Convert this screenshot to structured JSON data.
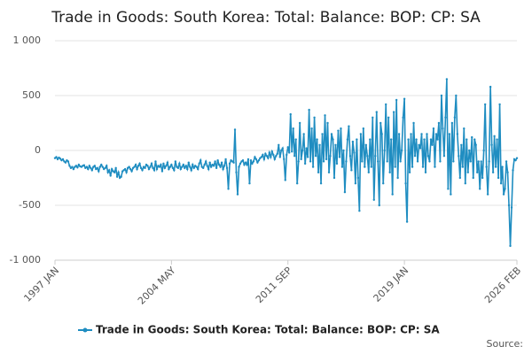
{
  "chart_data": {
    "type": "line",
    "title": "Trade in Goods: South Korea: Total: Balance: BOP: CP: SA",
    "source": "Source:",
    "categories": [
      "1997 JAN",
      null,
      null,
      null,
      null,
      null,
      null,
      null,
      null,
      null,
      null,
      null,
      null,
      null,
      null,
      null,
      null,
      null,
      null,
      null,
      null,
      null,
      null,
      null,
      null,
      null,
      null,
      null,
      null,
      null,
      null,
      null,
      null,
      null,
      null,
      null,
      null,
      null,
      null,
      null,
      null,
      null,
      null,
      null,
      null,
      null,
      null,
      null,
      null,
      null,
      null,
      null,
      null,
      null,
      null,
      null,
      null,
      null,
      null,
      null,
      null,
      null,
      null,
      null,
      null,
      null,
      null,
      null,
      null,
      null,
      null,
      null,
      null,
      null,
      null,
      null,
      null,
      null,
      null,
      null,
      null,
      null,
      null,
      null,
      null,
      null,
      null,
      null,
      "2004 MAY",
      null,
      null,
      null,
      null,
      null,
      null,
      null,
      null,
      null,
      null,
      null,
      null,
      null,
      null,
      null,
      null,
      null,
      null,
      null,
      null,
      null,
      null,
      null,
      null,
      null,
      null,
      null,
      null,
      null,
      null,
      null,
      null,
      null,
      null,
      null,
      null,
      null,
      null,
      null,
      null,
      null,
      null,
      null,
      null,
      null,
      null,
      null,
      null,
      null,
      null,
      null,
      null,
      null,
      null,
      null,
      null,
      null,
      null,
      null,
      null,
      null,
      null,
      null,
      null,
      null,
      null,
      null,
      null,
      null,
      null,
      null,
      null,
      null,
      null,
      null,
      null,
      null,
      null,
      null,
      null,
      null,
      null,
      null,
      null,
      null,
      null,
      null,
      "2011 SEP",
      null,
      null,
      null,
      null,
      null,
      null,
      null,
      null,
      null,
      null,
      null,
      null,
      null,
      null,
      null,
      null,
      null,
      null,
      null,
      null,
      null,
      null,
      null,
      null,
      null,
      null,
      null,
      null,
      null,
      null,
      null,
      null,
      null,
      null,
      null,
      null,
      null,
      null,
      null,
      null,
      null,
      null,
      null,
      null,
      null,
      null,
      null,
      null,
      null,
      null,
      null,
      null,
      null,
      null,
      null,
      null,
      null,
      null,
      null,
      null,
      null,
      null,
      null,
      null,
      null,
      null,
      null,
      null,
      null,
      null,
      null,
      null,
      null,
      null,
      null,
      null,
      null,
      null,
      null,
      null,
      null,
      null,
      null,
      null,
      null,
      null,
      null,
      "2019 JAN",
      null,
      null,
      null,
      null,
      null,
      null,
      null,
      null,
      null,
      null,
      null,
      null,
      null,
      null,
      null,
      null,
      null,
      null,
      null,
      null,
      null,
      null,
      null,
      null,
      null,
      null,
      null,
      null,
      null,
      null,
      null,
      null,
      null,
      null,
      null,
      null,
      null,
      null,
      null,
      null,
      null,
      null,
      null,
      null,
      null,
      null,
      null,
      null,
      null,
      null,
      null,
      null,
      null,
      null,
      null,
      null,
      null,
      null,
      null,
      null,
      null,
      null,
      null,
      null,
      null,
      null,
      null,
      null,
      null,
      null,
      null,
      null,
      null,
      null,
      null,
      null,
      null,
      null,
      null,
      null,
      null,
      null,
      null,
      null,
      "2026 FEB"
    ],
    "series": [
      {
        "name": "Trade in Goods: South Korea: Total: Balance: BOP: CP: SA",
        "color": "#1f8dc1",
        "values": [
          -70,
          -60,
          -80,
          -65,
          -75,
          -90,
          -80,
          -100,
          -110,
          -90,
          -100,
          -140,
          -160,
          -150,
          -170,
          -150,
          -140,
          -155,
          -130,
          -145,
          -150,
          -140,
          -135,
          -160,
          -150,
          -170,
          -140,
          -160,
          -180,
          -150,
          -140,
          -170,
          -160,
          -190,
          -150,
          -130,
          -150,
          -170,
          -160,
          -140,
          -200,
          -180,
          -230,
          -170,
          -190,
          -200,
          -160,
          -240,
          -200,
          -250,
          -240,
          -190,
          -180,
          -170,
          -200,
          -160,
          -150,
          -170,
          -190,
          -160,
          -150,
          -130,
          -170,
          -140,
          -120,
          -160,
          -180,
          -150,
          -160,
          -130,
          -140,
          -170,
          -150,
          -120,
          -160,
          -180,
          -100,
          -170,
          -140,
          -150,
          -130,
          -190,
          -120,
          -160,
          -140,
          -110,
          -170,
          -150,
          -130,
          -160,
          -180,
          -100,
          -150,
          -160,
          -120,
          -170,
          -150,
          -130,
          -160,
          -140,
          -170,
          -110,
          -150,
          -180,
          -130,
          -160,
          -140,
          -150,
          -170,
          -120,
          -90,
          -150,
          -160,
          -130,
          -100,
          -140,
          -170,
          -110,
          -150,
          -130,
          -140,
          -100,
          -160,
          -90,
          -130,
          -150,
          -110,
          -170,
          -140,
          -80,
          -160,
          -350,
          -120,
          -90,
          -100,
          -110,
          190,
          -200,
          -400,
          -150,
          -120,
          -100,
          -90,
          -130,
          -110,
          -130,
          -80,
          -300,
          -90,
          -120,
          -100,
          -60,
          -80,
          -110,
          -90,
          -70,
          -60,
          -40,
          -80,
          -30,
          -50,
          -70,
          -20,
          -60,
          -10,
          -40,
          -80,
          -50,
          -30,
          50,
          -60,
          0,
          20,
          -80,
          -270,
          -40,
          30,
          -20,
          330,
          -10,
          200,
          -50,
          100,
          -300,
          -100,
          250,
          -80,
          0,
          150,
          -120,
          20,
          -60,
          370,
          -100,
          200,
          -150,
          300,
          -50,
          100,
          -200,
          50,
          -300,
          150,
          -100,
          320,
          -80,
          250,
          -200,
          -50,
          150,
          100,
          -250,
          50,
          -120,
          180,
          -60,
          200,
          -150,
          0,
          -380,
          -100,
          100,
          220,
          -50,
          -180,
          80,
          -20,
          -300,
          100,
          -250,
          -550,
          150,
          -100,
          200,
          -150,
          50,
          -50,
          -200,
          100,
          -150,
          300,
          -450,
          -50,
          350,
          -100,
          -500,
          250,
          150,
          -300,
          0,
          420,
          -100,
          300,
          -200,
          100,
          -400,
          350,
          -150,
          460,
          -250,
          150,
          -100,
          0,
          300,
          470,
          -300,
          -650,
          100,
          -200,
          150,
          -150,
          250,
          -50,
          100,
          -100,
          50,
          20,
          150,
          -150,
          100,
          -200,
          150,
          -50,
          -100,
          100,
          50,
          200,
          -150,
          150,
          100,
          250,
          -100,
          500,
          200,
          -50,
          300,
          650,
          -350,
          150,
          -400,
          250,
          -100,
          300,
          500,
          150,
          -50,
          -250,
          50,
          -150,
          200,
          -300,
          100,
          -200,
          0,
          -100,
          120,
          -250,
          100,
          50,
          -200,
          -100,
          -350,
          -100,
          -250,
          0,
          420,
          -150,
          -400,
          -100,
          580,
          50,
          -200,
          130,
          -150,
          100,
          -250,
          420,
          -300,
          -150,
          -400,
          -350,
          -100,
          -200,
          -500,
          -870,
          -520,
          -180,
          -80,
          -90,
          -70
        ]
      }
    ],
    "ylim": [
      -1000,
      1000
    ],
    "yticks": [
      {
        "value": -1000,
        "label": "-1 000"
      },
      -500,
      0,
      500,
      {
        "value": 1000,
        "label": "1 000"
      }
    ],
    "grid": true
  }
}
